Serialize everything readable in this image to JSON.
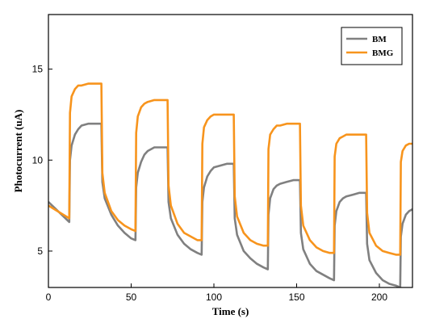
{
  "chart_data": {
    "type": "line",
    "title": "",
    "xlabel": "Time (s)",
    "ylabel": "Photocurrent (uA)",
    "xlim": [
      0,
      220
    ],
    "ylim": [
      3,
      18
    ],
    "xticks": [
      0,
      50,
      100,
      150,
      200
    ],
    "yticks": [
      5,
      10,
      15
    ],
    "grid": false,
    "legend_position": "top-right",
    "series": [
      {
        "name": "BM",
        "color": "#808080",
        "x": [
          0,
          12.6,
          13,
          14,
          16,
          18,
          20,
          24,
          28,
          32,
          32.6,
          34,
          38,
          42,
          46,
          50,
          52.6,
          53,
          54,
          56,
          58,
          60,
          64,
          68,
          72,
          72.6,
          74,
          78,
          82,
          86,
          90,
          92.6,
          93,
          94,
          96,
          98,
          100,
          104,
          108,
          112,
          112.6,
          114,
          118,
          122,
          126,
          130,
          132.6,
          133,
          134,
          136,
          138,
          140,
          144,
          148,
          152,
          152.6,
          154,
          158,
          162,
          166,
          170,
          172.6,
          173,
          174,
          176,
          178,
          180,
          184,
          188,
          192,
          192.6,
          194,
          198,
          202,
          206,
          210,
          212.6,
          213,
          214,
          216,
          218,
          220
        ],
        "y": [
          7.7,
          6.6,
          10.0,
          10.8,
          11.4,
          11.7,
          11.9,
          12.0,
          12.0,
          12.0,
          8.8,
          7.9,
          7.0,
          6.4,
          6.0,
          5.7,
          5.6,
          8.5,
          9.3,
          9.9,
          10.3,
          10.5,
          10.7,
          10.7,
          10.7,
          7.7,
          6.8,
          5.9,
          5.4,
          5.1,
          4.9,
          4.8,
          7.7,
          8.5,
          9.1,
          9.4,
          9.6,
          9.7,
          9.8,
          9.8,
          6.8,
          5.9,
          5.0,
          4.6,
          4.3,
          4.1,
          4.0,
          7.0,
          7.9,
          8.4,
          8.6,
          8.7,
          8.8,
          8.9,
          8.9,
          6.0,
          5.1,
          4.3,
          3.9,
          3.7,
          3.5,
          3.4,
          6.4,
          7.2,
          7.7,
          7.9,
          8.0,
          8.1,
          8.2,
          8.2,
          5.4,
          4.5,
          3.8,
          3.4,
          3.2,
          3.1,
          3.0,
          5.8,
          6.5,
          7.0,
          7.2,
          7.3
        ]
      },
      {
        "name": "BMG",
        "color": "#f7941d",
        "x": [
          0,
          12.6,
          13,
          14,
          16,
          18,
          20,
          24,
          28,
          32,
          32.6,
          34,
          38,
          42,
          46,
          50,
          52.6,
          53,
          54,
          56,
          58,
          60,
          64,
          68,
          72,
          72.6,
          74,
          78,
          82,
          86,
          90,
          92.6,
          93,
          94,
          96,
          98,
          100,
          104,
          108,
          112,
          112.6,
          114,
          118,
          122,
          126,
          130,
          132.6,
          133,
          134,
          136,
          138,
          140,
          144,
          148,
          152,
          152.6,
          154,
          158,
          162,
          166,
          170,
          172.6,
          173,
          174,
          176,
          178,
          180,
          184,
          188,
          192,
          192.6,
          194,
          198,
          202,
          206,
          210,
          212.6,
          213,
          214,
          216,
          218,
          220
        ],
        "y": [
          7.5,
          6.8,
          12.6,
          13.5,
          13.9,
          14.1,
          14.1,
          14.2,
          14.2,
          14.2,
          9.3,
          8.2,
          7.2,
          6.7,
          6.4,
          6.2,
          6.1,
          11.5,
          12.4,
          12.9,
          13.1,
          13.2,
          13.3,
          13.3,
          13.3,
          8.6,
          7.5,
          6.5,
          6.0,
          5.8,
          5.6,
          5.6,
          10.9,
          11.8,
          12.2,
          12.4,
          12.5,
          12.5,
          12.5,
          12.5,
          8.0,
          6.9,
          6.0,
          5.6,
          5.4,
          5.3,
          5.3,
          10.6,
          11.4,
          11.7,
          11.9,
          11.9,
          12.0,
          12.0,
          12.0,
          7.5,
          6.4,
          5.6,
          5.2,
          5.0,
          4.9,
          4.9,
          10.2,
          10.9,
          11.2,
          11.3,
          11.4,
          11.4,
          11.4,
          11.4,
          7.1,
          6.0,
          5.3,
          5.0,
          4.9,
          4.8,
          4.8,
          9.9,
          10.5,
          10.8,
          10.9,
          10.9
        ]
      }
    ]
  }
}
